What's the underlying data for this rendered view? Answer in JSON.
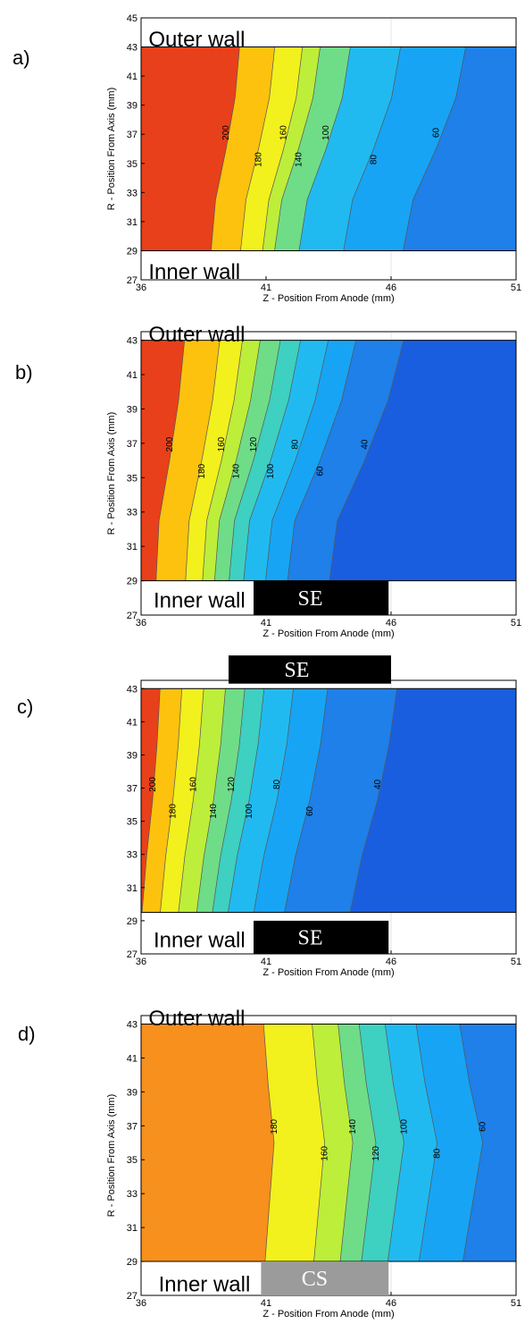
{
  "chart_data": [
    {
      "type": "contour",
      "panel": "a)",
      "xlabel": "Z - Position From Anode (mm)",
      "ylabel": "R - Position From Axis (mm)",
      "xlim": [
        36,
        51
      ],
      "ylim": [
        27,
        45
      ],
      "xticks": [
        "36",
        "41",
        "46",
        "51"
      ],
      "yticks": [
        "27",
        "29",
        "31",
        "33",
        "35",
        "37",
        "39",
        "41",
        "43",
        "45"
      ],
      "data_region": {
        "r_min": 29,
        "r_max": 43
      },
      "contour_levels": [
        "200",
        "180",
        "160",
        "140",
        "100",
        "80",
        "60"
      ],
      "contour_z_at_center": [
        39.4,
        40.7,
        41.7,
        42.3,
        43.4,
        45.3,
        47.8
      ],
      "annotations": [
        {
          "text": "Outer wall",
          "z": 36.3,
          "r": 43.6
        },
        {
          "text": "Inner wall",
          "z": 36.3,
          "r": 27.6
        }
      ]
    },
    {
      "type": "contour",
      "panel": "b)",
      "xlabel": "Z - Position From Anode (mm)",
      "ylabel": "R - Position From Axis (mm)",
      "xlim": [
        36,
        51
      ],
      "ylim": [
        27,
        43.5
      ],
      "xticks": [
        "36",
        "41",
        "46",
        "51"
      ],
      "yticks": [
        "27",
        "29",
        "31",
        "33",
        "35",
        "37",
        "39",
        "41",
        "43"
      ],
      "data_region": {
        "r_min": 29,
        "r_max": 43
      },
      "contour_levels": [
        "200",
        "180",
        "160",
        "140",
        "120",
        "100",
        "80",
        "60",
        "40"
      ],
      "contour_z_at_center": [
        37.2,
        38.5,
        39.3,
        39.9,
        40.6,
        41.3,
        42.3,
        43.3,
        45.1
      ],
      "annotations": [
        {
          "text": "Outer wall",
          "z": 36.3,
          "r": 43.4
        },
        {
          "text": "Inner wall",
          "z": 36.5,
          "r": 27.9
        },
        {
          "text": "SE",
          "z": 41.3,
          "r": 27.8,
          "style": "black-box",
          "z_range": [
            40.5,
            45.9
          ],
          "r_range": [
            27,
            29
          ]
        }
      ]
    },
    {
      "type": "contour",
      "panel": "c)",
      "xlabel": "Z - Position From Anode (mm)",
      "ylabel": "",
      "xlim": [
        36,
        51
      ],
      "ylim": [
        27,
        43.5
      ],
      "xticks": [
        "36",
        "41",
        "46",
        "51"
      ],
      "yticks": [
        "27",
        "29",
        "31",
        "33",
        "35",
        "37",
        "39",
        "41",
        "43"
      ],
      "data_region": {
        "r_min": 29.5,
        "r_max": 43
      },
      "contour_levels": [
        "200",
        "180",
        "160",
        "140",
        "120",
        "100",
        "80",
        "60",
        "40"
      ],
      "contour_z_at_center": [
        36.4,
        37.2,
        38.0,
        38.8,
        39.5,
        40.2,
        41.3,
        42.6,
        45.3
      ],
      "annotations": [
        {
          "text": "SE",
          "z": 41.3,
          "r": 44.2,
          "style": "black-box",
          "z_range": [
            39.5,
            46.0
          ],
          "r_range": [
            43.3,
            45
          ]
        },
        {
          "text": "Inner wall",
          "z": 36.5,
          "r": 27.9
        },
        {
          "text": "SE",
          "z": 41.3,
          "r": 27.8,
          "style": "black-box",
          "z_range": [
            40.5,
            45.9
          ],
          "r_range": [
            27,
            29
          ]
        }
      ]
    },
    {
      "type": "contour",
      "panel": "d)",
      "xlabel": "Z - Position From Anode (mm)",
      "ylabel": "R - Position From Axis (mm)",
      "xlim": [
        36,
        51
      ],
      "ylim": [
        27,
        43.5
      ],
      "xticks": [
        "36",
        "41",
        "46",
        "51"
      ],
      "yticks": [
        "27",
        "29",
        "31",
        "33",
        "35",
        "37",
        "39",
        "41",
        "43"
      ],
      "data_region": {
        "r_min": 29,
        "r_max": 43
      },
      "contour_levels": [
        "180",
        "160",
        "140",
        "120",
        "100",
        "80",
        "60"
      ],
      "contour_z_at_center": [
        41.2,
        43.2,
        44.3,
        45.2,
        46.3,
        47.6,
        49.4
      ],
      "annotations": [
        {
          "text": "Outer wall",
          "z": 36.3,
          "r": 43.4
        },
        {
          "text": "Inner wall",
          "z": 36.7,
          "r": 27.7
        },
        {
          "text": "CS",
          "z": 41.3,
          "r": 27.8,
          "style": "gray-box",
          "z_range": [
            40.8,
            45.9
          ],
          "r_range": [
            27,
            29
          ]
        }
      ]
    }
  ],
  "colors": {
    "scale": [
      "#e8401a",
      "#f7901c",
      "#fcc20e",
      "#f2f01d",
      "#bdee3a",
      "#6fdc88",
      "#3ed0c0",
      "#21baf0",
      "#18a4f4",
      "#1e80e8",
      "#1a5ee0",
      "#1840d8"
    ],
    "gray_box": "#9b9b9b",
    "black_box": "#000000"
  }
}
